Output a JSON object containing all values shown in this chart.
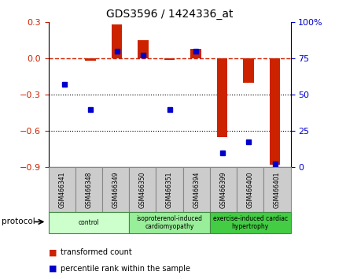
{
  "title": "GDS3596 / 1424336_at",
  "samples": [
    "GSM466341",
    "GSM466348",
    "GSM466349",
    "GSM466350",
    "GSM466351",
    "GSM466394",
    "GSM466399",
    "GSM466400",
    "GSM466401"
  ],
  "transformed_count": [
    0.0,
    -0.02,
    0.28,
    0.15,
    -0.01,
    0.08,
    -0.65,
    -0.2,
    -0.88
  ],
  "percentile_rank_left": [
    -0.21,
    -0.42,
    0.06,
    0.03,
    -0.42,
    0.06,
    -0.78,
    -0.69,
    -0.87
  ],
  "ylim_left": [
    -0.9,
    0.3
  ],
  "ylim_right": [
    0,
    100
  ],
  "yticks_left": [
    -0.9,
    -0.6,
    -0.3,
    0.0,
    0.3
  ],
  "yticks_right": [
    0,
    25,
    50,
    75,
    100
  ],
  "groups": [
    {
      "label": "control",
      "start": 0,
      "end": 3,
      "color": "#ccffcc"
    },
    {
      "label": "isoproterenol-induced\ncardiomyopathy",
      "start": 3,
      "end": 6,
      "color": "#99ee99"
    },
    {
      "label": "exercise-induced cardiac\nhypertrophy",
      "start": 6,
      "end": 9,
      "color": "#44cc44"
    }
  ],
  "bar_color_red": "#cc2200",
  "marker_color_blue": "#0000cc",
  "bar_width": 0.4,
  "dashed_line_color": "#cc2200",
  "dotted_line_color": "#000000",
  "tick_label_bg": "#cccccc",
  "protocol_label": "protocol",
  "legend_items": [
    "transformed count",
    "percentile rank within the sample"
  ]
}
